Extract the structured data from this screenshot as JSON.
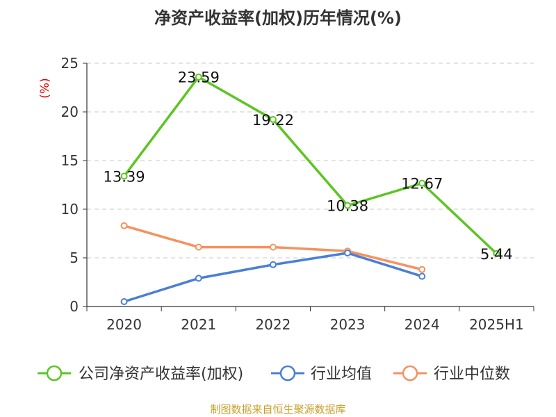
{
  "title": "净资产收益率(加权)历年情况(%)",
  "source": "制图数据来自恒生聚源数据库",
  "chart_data": {
    "type": "line",
    "title": "净资产收益率(加权)历年情况(%)",
    "ylabel": "(%)",
    "ylim": [
      0,
      25
    ],
    "yticks": [
      "0",
      "5",
      "10",
      "15",
      "20",
      "25"
    ],
    "categories": [
      "2020",
      "2021",
      "2022",
      "2023",
      "2024",
      "2025H1"
    ],
    "grid": true,
    "legend_position": "bottom",
    "series": [
      {
        "name": "公司净资产收益率(加权)",
        "color": "#5cc523",
        "values": [
          13.39,
          23.59,
          19.22,
          10.38,
          12.67,
          5.44
        ],
        "data_labels": [
          "13.39",
          "23.59",
          "19.22",
          "10.38",
          "12.67",
          "5.44"
        ]
      },
      {
        "name": "行业均值",
        "color": "#4a7fd4",
        "values": [
          0.5,
          2.9,
          4.3,
          5.5,
          3.1,
          null
        ]
      },
      {
        "name": "行业中位数",
        "color": "#f5925e",
        "values": [
          8.3,
          6.1,
          6.1,
          5.7,
          3.8,
          null
        ]
      }
    ]
  }
}
